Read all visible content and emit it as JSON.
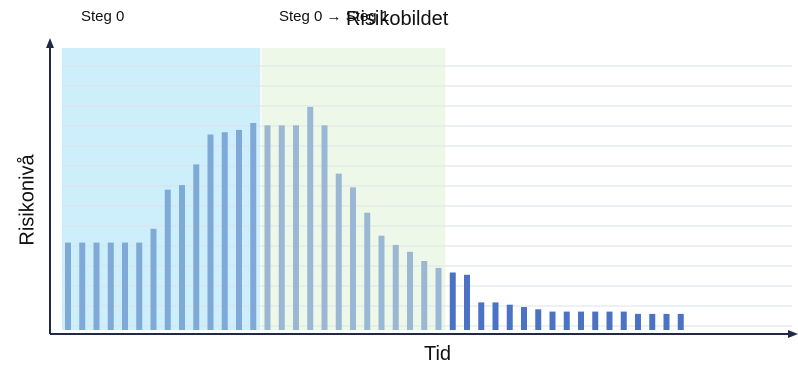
{
  "chart_data": {
    "type": "bar",
    "title": "Risikobildet",
    "xlabel": "Tid",
    "ylabel": "Risikonivå",
    "ylim": [
      0,
      100
    ],
    "grid": true,
    "phases": [
      {
        "label": "Steg 0",
        "color": "#cdeefb",
        "start": 0,
        "end": 13
      },
      {
        "label": "Steg 0 → Steg 1",
        "color": "#eef8e8",
        "start": 14,
        "end": 26
      }
    ],
    "values": [
      38,
      38,
      38,
      38,
      38,
      38,
      44,
      61,
      63,
      72,
      85,
      86,
      87,
      90,
      89,
      89,
      89,
      97,
      89,
      68,
      62,
      51,
      41,
      37,
      34,
      30,
      27,
      25,
      24,
      12,
      12,
      11,
      10,
      9,
      8,
      8,
      8,
      8,
      8,
      8,
      7,
      7,
      7,
      7
    ],
    "bar_colors": [
      "#7fa9d6",
      "#9ab7d4",
      "#4b72c4"
    ],
    "bar_phase": [
      0,
      0,
      0,
      0,
      0,
      0,
      0,
      0,
      0,
      0,
      0,
      0,
      0,
      0,
      1,
      1,
      1,
      1,
      1,
      1,
      1,
      1,
      1,
      1,
      1,
      1,
      1,
      2,
      2,
      2,
      2,
      2,
      2,
      2,
      2,
      2,
      2,
      2,
      2,
      2,
      2,
      2,
      2,
      2
    ]
  }
}
